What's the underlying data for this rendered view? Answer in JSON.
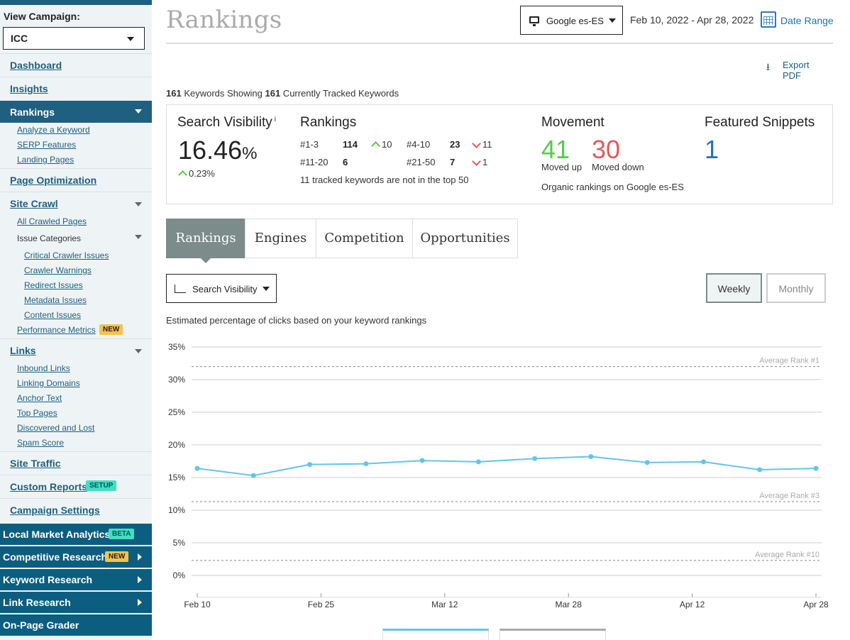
{
  "sidebar": {
    "view_campaign_label": "View Campaign:",
    "campaign": "ICC",
    "nav": {
      "dashboard": "Dashboard",
      "insights": "Insights",
      "rankings": "Rankings",
      "rankings_sub": [
        "Analyze a Keyword",
        "SERP Features",
        "Landing Pages"
      ],
      "page_optimization": "Page Optimization",
      "site_crawl": "Site Crawl",
      "all_crawled": "All Crawled Pages",
      "issue_categories": "Issue Categories",
      "issue_sub": [
        "Critical Crawler Issues",
        "Crawler Warnings",
        "Redirect Issues",
        "Metadata Issues",
        "Content Issues"
      ],
      "performance_metrics": "Performance Metrics",
      "new_badge": "NEW",
      "links": "Links",
      "links_sub": [
        "Inbound Links",
        "Linking Domains",
        "Anchor Text",
        "Top Pages",
        "Discovered and Lost",
        "Spam Score"
      ],
      "site_traffic": "Site Traffic",
      "custom_reports": "Custom Reports",
      "setup_badge": "SETUP",
      "campaign_settings": "Campaign Settings"
    },
    "tools": {
      "local_market": "Local Market Analytics",
      "beta_badge": "BETA",
      "competitive": "Competitive Research",
      "competitive_badge": "NEW",
      "keyword_research": "Keyword Research",
      "link_research": "Link Research",
      "on_page": "On-Page Grader"
    }
  },
  "header": {
    "title": "Rankings",
    "engine": "Google es-ES",
    "date_text": "Feb 10, 2022 - Apr 28, 2022",
    "date_range_label": "Date Range",
    "export_label": "Export PDF"
  },
  "keywords_line": {
    "showing": "161",
    "showing_text": " Keywords Showing ",
    "tracked": "161",
    "tracked_text": " Currently Tracked Keywords"
  },
  "stats": {
    "search_visibility": {
      "title": "Search Visibility",
      "info": "i",
      "value": "16.46",
      "unit": "%",
      "change": "0.23%"
    },
    "rankings": {
      "title": "Rankings",
      "r1_label": "#1-3",
      "r1_val": "114",
      "r1_change": "10",
      "r2_label": "#4-10",
      "r2_val": "23",
      "r2_change": "11",
      "r3_label": "#11-20",
      "r3_val": "6",
      "r4_label": "#21-50",
      "r4_val": "7",
      "r4_change": "1",
      "note": "11 tracked keywords are not in the top 50"
    },
    "movement": {
      "title": "Movement",
      "up": "41",
      "up_label": "Moved up",
      "down": "30",
      "down_label": "Moved down",
      "note": "Organic rankings on Google es-ES"
    },
    "featured": {
      "title": "Featured Snippets",
      "value": "1"
    }
  },
  "tabs": [
    "Rankings",
    "Engines",
    "Competition",
    "Opportunities"
  ],
  "controls": {
    "metric": "Search Visibility",
    "weekly": "Weekly",
    "monthly": "Monthly"
  },
  "chart_description": "Estimated percentage of clicks based on your keyword rankings",
  "colors": {
    "accent": "#1f5f7f",
    "line": "#64c4ea",
    "up": "#59c94a",
    "down": "#e0585b",
    "snippet": "#1f73b5"
  },
  "chart_data": {
    "type": "line",
    "x": [
      "Feb 10",
      "Feb 17",
      "Feb 24",
      "Mar 3",
      "Mar 10",
      "Mar 17",
      "Mar 24",
      "Mar 31",
      "Apr 7",
      "Apr 14",
      "Apr 21",
      "Apr 28"
    ],
    "x_tick_labels": [
      "Feb 10",
      "Feb 25",
      "Mar 12",
      "Mar 28",
      "Apr 12",
      "Apr 28"
    ],
    "series": [
      {
        "values": [
          16.4,
          15.3,
          17.0,
          17.1,
          17.6,
          17.4,
          17.9,
          18.2,
          17.3,
          17.4,
          16.2,
          16.4
        ]
      }
    ],
    "y_ticks": [
      "35%",
      "30%",
      "25%",
      "20%",
      "15%",
      "10%",
      "5%",
      "0%"
    ],
    "ylim": [
      0,
      35
    ],
    "reference_lines": [
      {
        "label": "Average Rank #1",
        "value": 32
      },
      {
        "label": "Average Rank #3",
        "value": 11.3
      },
      {
        "label": "Average Rank #10",
        "value": 2.3
      }
    ],
    "grid": true
  }
}
